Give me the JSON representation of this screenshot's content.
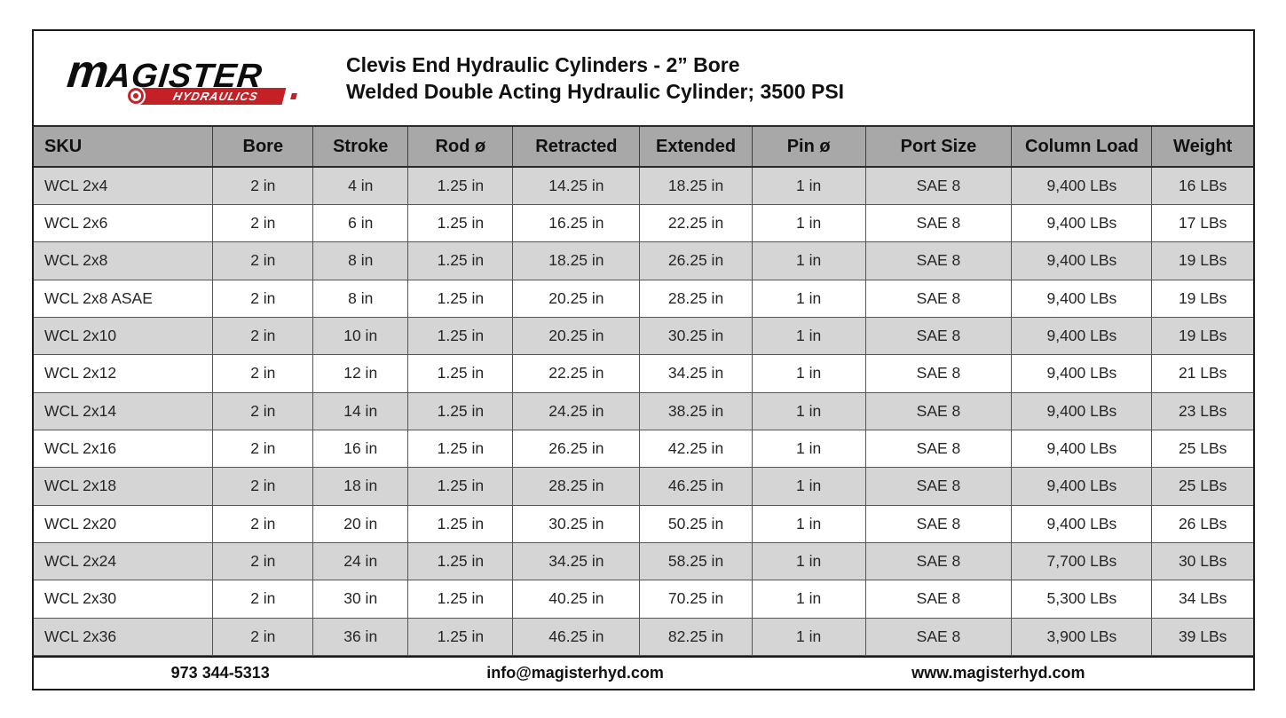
{
  "brand": {
    "name_first_letter": "m",
    "name_rest": "AGISTER",
    "sub": "HYDRAULICS",
    "accent_red": "#c42127"
  },
  "header": {
    "title_line1": "Clevis End Hydraulic Cylinders - 2” Bore",
    "title_line2": "Welded Double Acting Hydraulic Cylinder; 3500 PSI"
  },
  "table": {
    "columns": [
      "SKU",
      "Bore",
      "Stroke",
      "Rod ø",
      "Retracted",
      "Extended",
      "Pin ø",
      "Port Size",
      "Column Load",
      "Weight"
    ],
    "rows": [
      [
        "WCL 2x4",
        "2 in",
        "4 in",
        "1.25 in",
        "14.25 in",
        "18.25 in",
        "1 in",
        "SAE 8",
        "9,400 LBs",
        "16 LBs"
      ],
      [
        "WCL 2x6",
        "2 in",
        "6 in",
        "1.25 in",
        "16.25 in",
        "22.25 in",
        "1 in",
        "SAE 8",
        "9,400 LBs",
        "17 LBs"
      ],
      [
        "WCL 2x8",
        "2 in",
        "8 in",
        "1.25 in",
        "18.25 in",
        "26.25 in",
        "1 in",
        "SAE 8",
        "9,400 LBs",
        "19 LBs"
      ],
      [
        "WCL 2x8 ASAE",
        "2 in",
        "8 in",
        "1.25 in",
        "20.25 in",
        "28.25 in",
        "1 in",
        "SAE 8",
        "9,400 LBs",
        "19 LBs"
      ],
      [
        "WCL 2x10",
        "2 in",
        "10 in",
        "1.25 in",
        "20.25 in",
        "30.25 in",
        "1 in",
        "SAE 8",
        "9,400 LBs",
        "19 LBs"
      ],
      [
        "WCL 2x12",
        "2 in",
        "12 in",
        "1.25 in",
        "22.25 in",
        "34.25 in",
        "1 in",
        "SAE 8",
        "9,400 LBs",
        "21 LBs"
      ],
      [
        "WCL 2x14",
        "2 in",
        "14 in",
        "1.25 in",
        "24.25 in",
        "38.25 in",
        "1 in",
        "SAE 8",
        "9,400 LBs",
        "23 LBs"
      ],
      [
        "WCL 2x16",
        "2 in",
        "16 in",
        "1.25 in",
        "26.25 in",
        "42.25 in",
        "1 in",
        "SAE 8",
        "9,400 LBs",
        "25 LBs"
      ],
      [
        "WCL 2x18",
        "2 in",
        "18 in",
        "1.25 in",
        "28.25 in",
        "46.25 in",
        "1 in",
        "SAE 8",
        "9,400 LBs",
        "25 LBs"
      ],
      [
        "WCL 2x20",
        "2 in",
        "20 in",
        "1.25 in",
        "30.25 in",
        "50.25 in",
        "1 in",
        "SAE 8",
        "9,400 LBs",
        "26 LBs"
      ],
      [
        "WCL 2x24",
        "2 in",
        "24 in",
        "1.25 in",
        "34.25 in",
        "58.25 in",
        "1 in",
        "SAE 8",
        "7,700 LBs",
        "30 LBs"
      ],
      [
        "WCL 2x30",
        "2 in",
        "30 in",
        "1.25 in",
        "40.25 in",
        "70.25 in",
        "1 in",
        "SAE 8",
        "5,300 LBs",
        "34 LBs"
      ],
      [
        "WCL 2x36",
        "2 in",
        "36 in",
        "1.25 in",
        "46.25 in",
        "82.25 in",
        "1 in",
        "SAE 8",
        "3,900 LBs",
        "39 LBs"
      ]
    ]
  },
  "footer": {
    "phone": "973 344-5313",
    "email": "info@magisterhyd.com",
    "website": "www.magisterhyd.com"
  },
  "colors": {
    "accent_red": "#c42127",
    "header_row_gray": "#a8a8a8",
    "alt_row_gray": "#d5d5d5",
    "border_dark": "#1b1b1b"
  }
}
